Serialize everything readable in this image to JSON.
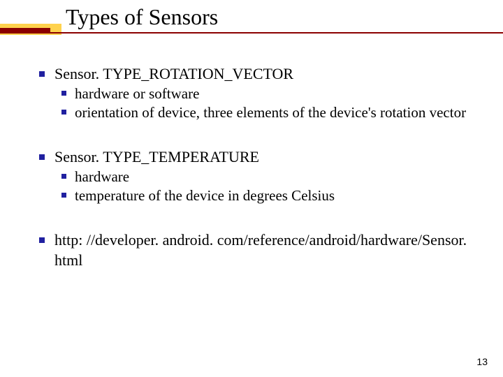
{
  "title": "Types of Sensors",
  "colors": {
    "accent_red": "#8b0000",
    "accent_yellow": "#ffd24d",
    "bullet_blue": "#2020a0",
    "text": "#000000",
    "background": "#ffffff"
  },
  "bullets": {
    "b1": {
      "heading": "Sensor. TYPE_ROTATION_VECTOR",
      "sub1": "hardware or software",
      "sub2": "orientation of device, three elements of the device's rotation vector"
    },
    "b2": {
      "heading": "Sensor. TYPE_TEMPERATURE",
      "sub1": "hardware",
      "sub2": "temperature of the device in degrees Celsius"
    },
    "b3": {
      "text": "http: //developer. android. com/reference/android/hardware/Sensor. html"
    }
  },
  "page_number": "13",
  "fonts": {
    "title_size": 32,
    "body_size": 22,
    "sub_size": 21,
    "page_num_size": 14
  }
}
